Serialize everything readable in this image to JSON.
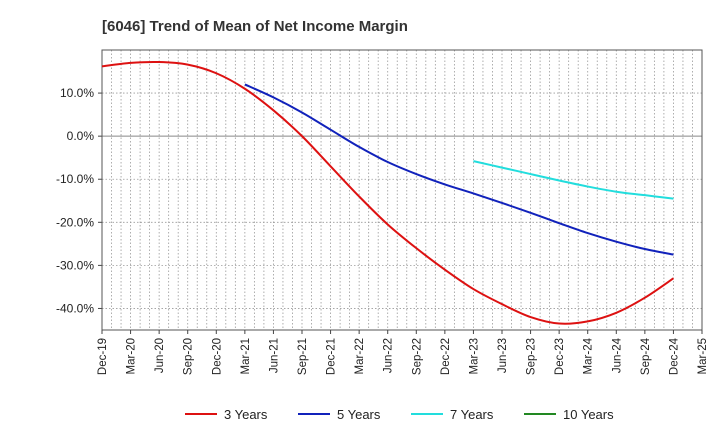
{
  "chart_data": {
    "type": "line",
    "title": "[6046]  Trend of Mean of Net Income Margin",
    "xlabel": "",
    "ylabel": "",
    "x_ticks": [
      "Dec-19",
      "Mar-20",
      "Jun-20",
      "Sep-20",
      "Dec-20",
      "Mar-21",
      "Jun-21",
      "Sep-21",
      "Dec-21",
      "Mar-22",
      "Jun-22",
      "Sep-22",
      "Dec-22",
      "Mar-23",
      "Jun-23",
      "Sep-23",
      "Dec-23",
      "Mar-24",
      "Jun-24",
      "Sep-24",
      "Dec-24",
      "Mar-25"
    ],
    "y_ticks": [
      "10.0%",
      "0.0%",
      "-10.0%",
      "-20.0%",
      "-30.0%",
      "-40.0%"
    ],
    "ylim": [
      -45,
      20
    ],
    "grid": true,
    "legend_position": "bottom",
    "series": [
      {
        "name": "3 Years",
        "color": "#dd1111",
        "x": [
          "Dec-19",
          "Mar-20",
          "Jun-20",
          "Sep-20",
          "Dec-20",
          "Mar-21",
          "Jun-21",
          "Sep-21",
          "Dec-21",
          "Mar-22",
          "Jun-22",
          "Sep-22",
          "Dec-22",
          "Mar-23",
          "Jun-23",
          "Sep-23",
          "Dec-23",
          "Mar-24",
          "Jun-24",
          "Sep-24",
          "Dec-24"
        ],
        "values": [
          16.2,
          17.0,
          17.2,
          16.6,
          14.6,
          11.0,
          6.0,
          0.0,
          -7.0,
          -14.0,
          -20.5,
          -26.0,
          -31.0,
          -35.5,
          -39.0,
          -42.0,
          -43.5,
          -43.0,
          -41.0,
          -37.5,
          -33.0
        ]
      },
      {
        "name": "5 Years",
        "color": "#1122bb",
        "x": [
          "Mar-21",
          "Jun-21",
          "Sep-21",
          "Dec-21",
          "Mar-22",
          "Jun-22",
          "Sep-22",
          "Dec-22",
          "Mar-23",
          "Jun-23",
          "Sep-23",
          "Dec-23",
          "Mar-24",
          "Jun-24",
          "Sep-24",
          "Dec-24"
        ],
        "values": [
          12.0,
          9.0,
          5.5,
          1.5,
          -2.5,
          -6.0,
          -8.8,
          -11.2,
          -13.3,
          -15.5,
          -17.8,
          -20.2,
          -22.5,
          -24.5,
          -26.2,
          -27.5
        ]
      },
      {
        "name": "7 Years",
        "color": "#22dddd",
        "x": [
          "Mar-23",
          "Jun-23",
          "Sep-23",
          "Dec-23",
          "Mar-24",
          "Jun-24",
          "Sep-24",
          "Dec-24"
        ],
        "values": [
          -5.8,
          -7.3,
          -8.8,
          -10.3,
          -11.7,
          -12.9,
          -13.7,
          -14.5
        ]
      },
      {
        "name": "10 Years",
        "color": "#228822",
        "x": [],
        "values": []
      }
    ]
  }
}
